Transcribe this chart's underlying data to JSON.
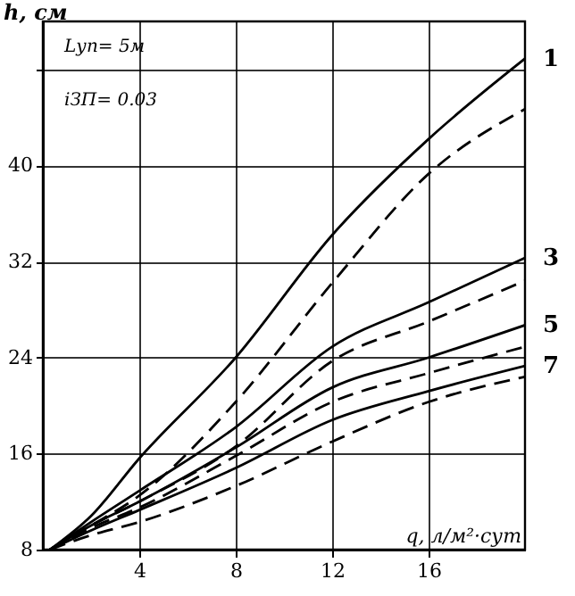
{
  "chart_data": {
    "type": "line",
    "xlabel": "q, л/м²·сут",
    "ylabel": "h, см",
    "x": [
      0.3,
      2,
      4,
      8,
      12,
      16,
      20
    ],
    "series": [
      {
        "name": "1",
        "color": "#000000",
        "line_style": "solid",
        "values": [
          8,
          10.8,
          15.6,
          24,
          34.2,
          42.2,
          48.9
        ]
      },
      {
        "color": "#000000",
        "line_style": "dashed",
        "values": [
          8,
          10,
          12.5,
          20.3,
          30.2,
          39.3,
          44.7
        ]
      },
      {
        "name": "3",
        "color": "#000000",
        "line_style": "solid",
        "values": [
          8,
          10.3,
          12.9,
          18.2,
          24.9,
          28.6,
          32.3
        ]
      },
      {
        "color": "#000000",
        "line_style": "dashed",
        "values": [
          8,
          10,
          12,
          16.6,
          23.7,
          27,
          30.4
        ]
      },
      {
        "name": "5",
        "color": "#000000",
        "line_style": "solid",
        "values": [
          8,
          10,
          12,
          16.5,
          21.5,
          24,
          26.7
        ]
      },
      {
        "color": "#000000",
        "line_style": "dashed",
        "values": [
          8,
          9.8,
          11.5,
          15.8,
          20.3,
          22.7,
          24.9
        ]
      },
      {
        "name": "7",
        "color": "#000000",
        "line_style": "solid",
        "values": [
          8,
          9.6,
          11.3,
          14.8,
          18.8,
          21.2,
          23.3
        ]
      },
      {
        "color": "#000000",
        "line_style": "dashed",
        "values": [
          8,
          9.2,
          10.3,
          13.3,
          17,
          20.3,
          22.4
        ]
      }
    ],
    "xlim": [
      0,
      20
    ],
    "ylim": [
      8,
      52
    ],
    "xticks": [
      4,
      8,
      12,
      16
    ],
    "yticks": [
      8,
      16,
      24,
      32,
      40,
      {
        "value": 48,
        "label": null
      }
    ],
    "grid": true,
    "annotations": [
      "Lуп= 5м",
      "iЗП= 0.03"
    ]
  }
}
